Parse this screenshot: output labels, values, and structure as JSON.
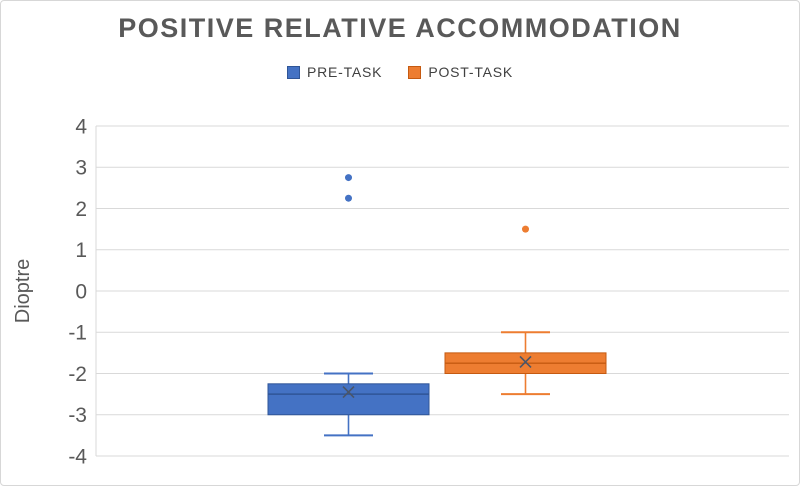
{
  "chart_data": {
    "type": "boxplot",
    "title": "POSITIVE RELATIVE ACCOMMODATION",
    "ylabel": "Dioptre",
    "ylim": [
      -4,
      4
    ],
    "ytick_step": 1,
    "yticks": [
      4,
      3,
      2,
      1,
      0,
      -1,
      -2,
      -3,
      -4
    ],
    "grid": true,
    "legend_position": "top",
    "gridline_color": "#d9d9d9",
    "axis_text_color": "#595959",
    "mean_marker": "x",
    "mean_marker_color": "#4a5568",
    "series": [
      {
        "name": "PRE-TASK",
        "color": "#4472C4",
        "border_color": "#2F5597",
        "whisker_low": -3.5,
        "q1": -3.0,
        "median": -2.5,
        "q3": -2.25,
        "whisker_high": -2.0,
        "mean": -2.45,
        "outliers": [
          2.75,
          2.25
        ]
      },
      {
        "name": "POST-TASK",
        "color": "#ED7D31",
        "border_color": "#C55A11",
        "whisker_low": -2.5,
        "q1": -2.0,
        "median": -1.75,
        "q3": -1.5,
        "whisker_high": -1.0,
        "mean": -1.72,
        "outliers": [
          1.5
        ]
      }
    ]
  }
}
